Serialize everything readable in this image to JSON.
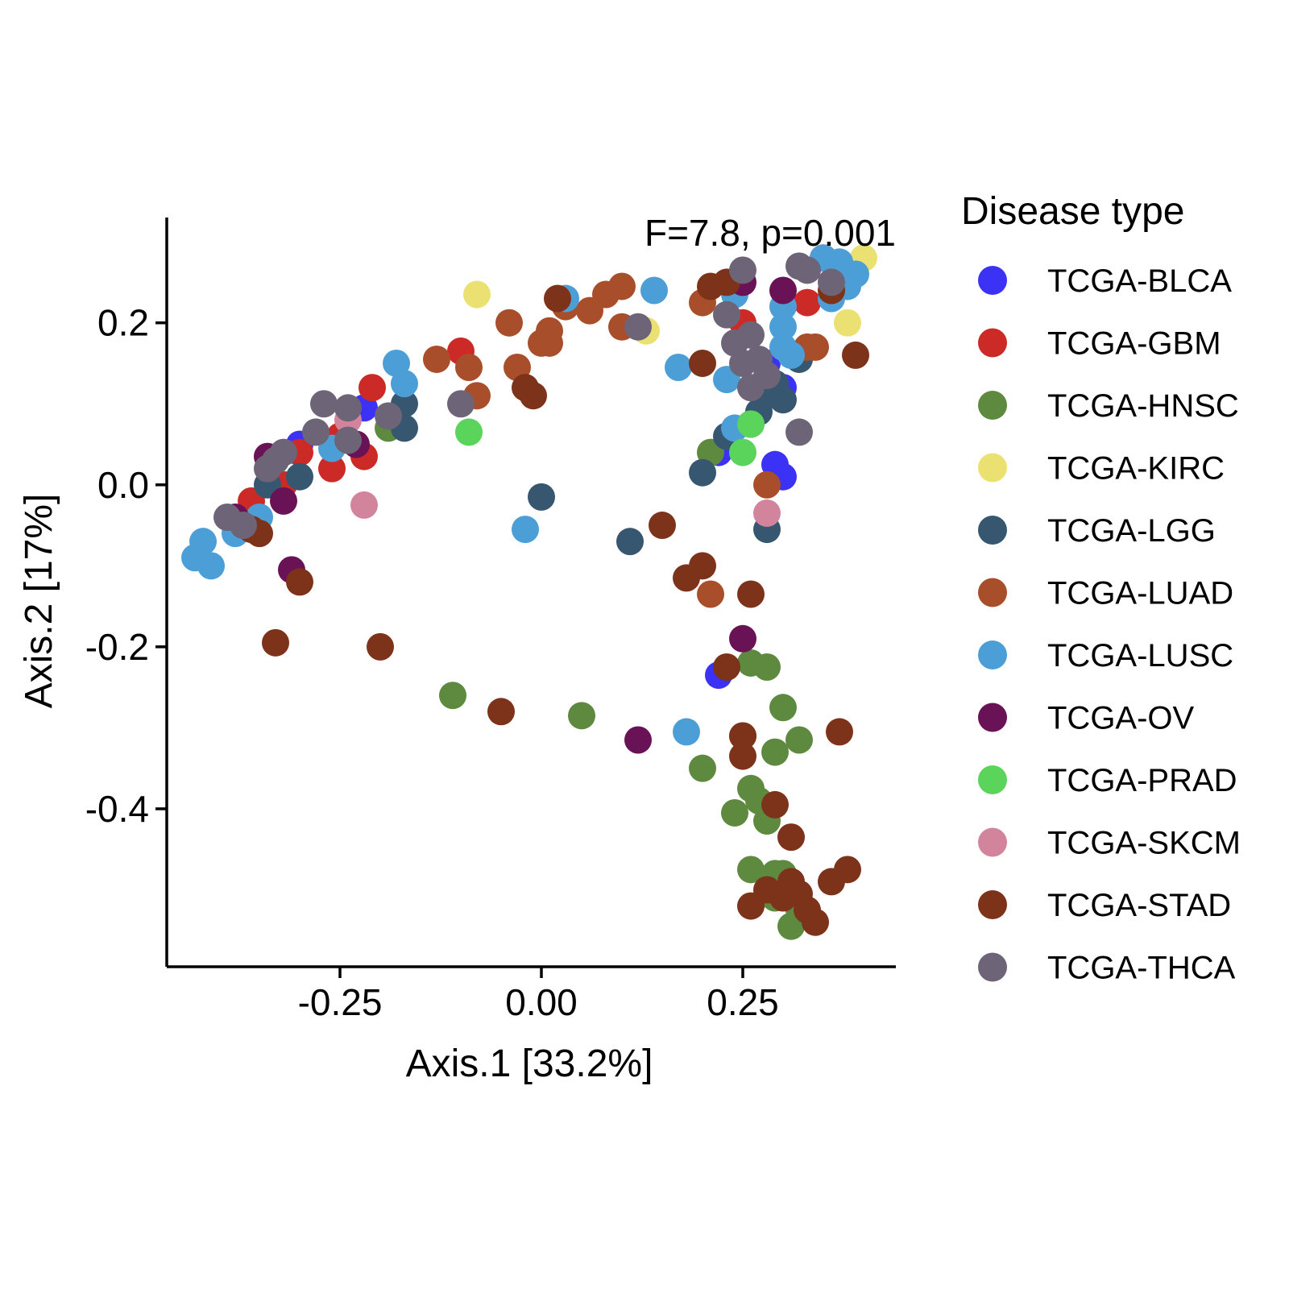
{
  "chart_data": {
    "type": "scatter",
    "annotation": "F=7.8, p=0.001",
    "xlabel": "Axis.1   [33.2%]",
    "ylabel": "Axis.2   [17%]",
    "xlim": [
      -0.465,
      0.44
    ],
    "ylim": [
      -0.595,
      0.33
    ],
    "xticks": [
      {
        "value": -0.25,
        "label": "-0.25"
      },
      {
        "value": 0.0,
        "label": "0.00"
      },
      {
        "value": 0.25,
        "label": "0.25"
      }
    ],
    "yticks": [
      {
        "value": 0.2,
        "label": "0.2"
      },
      {
        "value": 0.0,
        "label": "0.0"
      },
      {
        "value": -0.2,
        "label": "-0.2"
      },
      {
        "value": -0.4,
        "label": "-0.4"
      }
    ],
    "grid": false,
    "legend": {
      "title": "Disease type",
      "position": "right"
    },
    "series": [
      {
        "name": "TCGA-BLCA",
        "color": "#3C32F5",
        "x": [
          -0.3,
          -0.22,
          0.28,
          0.29,
          0.3,
          0.22,
          0.22,
          0.3
        ],
        "y": [
          0.05,
          0.095,
          0.15,
          0.025,
          0.01,
          -0.235,
          0.04,
          0.12
        ]
      },
      {
        "name": "TCGA-GBM",
        "color": "#CC2A27",
        "x": [
          -0.21,
          -0.25,
          -0.3,
          -0.32,
          -0.36,
          -0.26,
          -0.22,
          -0.1,
          0.25,
          0.33,
          0.35
        ],
        "y": [
          0.12,
          0.06,
          0.04,
          0.0,
          -0.02,
          0.02,
          0.035,
          0.165,
          0.2,
          0.225,
          0.28
        ]
      },
      {
        "name": "TCGA-HNSC",
        "color": "#5E8A40",
        "x": [
          -0.19,
          -0.11,
          0.05,
          0.26,
          0.28,
          0.3,
          0.32,
          0.2,
          0.29,
          0.26,
          0.27,
          0.24,
          0.28,
          0.26,
          0.29,
          0.3,
          0.28,
          0.29,
          0.31,
          0.32,
          0.31,
          0.21
        ],
        "y": [
          0.07,
          -0.26,
          -0.285,
          -0.22,
          -0.225,
          -0.275,
          -0.315,
          -0.35,
          -0.33,
          -0.375,
          -0.39,
          -0.405,
          -0.415,
          -0.475,
          -0.48,
          -0.48,
          -0.505,
          -0.51,
          -0.5,
          -0.525,
          -0.545,
          0.04
        ]
      },
      {
        "name": "TCGA-KIRC",
        "color": "#EBE172",
        "x": [
          -0.08,
          0.13,
          0.4,
          0.38
        ],
        "y": [
          0.235,
          0.19,
          0.28,
          0.2
        ]
      },
      {
        "name": "TCGA-LGG",
        "color": "#36576F",
        "x": [
          0.0,
          -0.17,
          -0.17,
          -0.3,
          -0.34,
          0.11,
          0.2,
          0.28,
          0.23,
          0.27,
          0.26,
          0.29,
          0.3,
          0.32,
          0.28
        ],
        "y": [
          -0.015,
          0.1,
          0.07,
          0.01,
          0.0,
          -0.07,
          0.015,
          -0.055,
          0.06,
          0.09,
          0.075,
          0.125,
          0.105,
          0.155,
          0.11
        ]
      },
      {
        "name": "TCGA-LUAD",
        "color": "#A94E2B",
        "x": [
          -0.13,
          -0.09,
          -0.08,
          -0.04,
          -0.03,
          0.0,
          0.01,
          0.03,
          0.06,
          0.08,
          0.1,
          0.2,
          0.33,
          0.34,
          0.28,
          0.21,
          0.1,
          0.01
        ],
        "y": [
          0.155,
          0.145,
          0.11,
          0.2,
          0.145,
          0.175,
          0.19,
          0.22,
          0.215,
          0.235,
          0.245,
          0.225,
          0.17,
          0.17,
          0.0,
          -0.135,
          0.195,
          0.175
        ]
      },
      {
        "name": "TCGA-LUSC",
        "color": "#4C9ED7",
        "x": [
          -0.43,
          -0.41,
          -0.42,
          -0.38,
          -0.35,
          -0.26,
          -0.18,
          -0.17,
          -0.02,
          0.03,
          0.14,
          0.17,
          0.18,
          0.24,
          0.23,
          0.24,
          0.3,
          0.3,
          0.35,
          0.37,
          0.38,
          0.39,
          0.36,
          0.38,
          0.31,
          0.3
        ],
        "y": [
          -0.09,
          -0.1,
          -0.07,
          -0.06,
          -0.04,
          0.045,
          0.15,
          0.125,
          -0.055,
          0.23,
          0.24,
          0.145,
          -0.305,
          0.07,
          0.13,
          0.235,
          0.22,
          0.195,
          0.28,
          0.275,
          0.25,
          0.26,
          0.23,
          0.245,
          0.16,
          0.17
        ]
      },
      {
        "name": "TCGA-OV",
        "color": "#6A1256",
        "x": [
          -0.31,
          -0.34,
          -0.32,
          -0.23,
          0.12,
          0.25,
          0.3,
          0.25,
          -0.38
        ],
        "y": [
          -0.105,
          0.035,
          -0.02,
          0.05,
          -0.315,
          -0.19,
          0.24,
          0.25,
          -0.04
        ]
      },
      {
        "name": "TCGA-PRAD",
        "color": "#5BD45B",
        "x": [
          -0.09,
          0.25,
          0.26
        ],
        "y": [
          0.065,
          0.04,
          0.075
        ]
      },
      {
        "name": "TCGA-SKCM",
        "color": "#D3849D",
        "x": [
          -0.22,
          -0.24,
          0.28
        ],
        "y": [
          -0.025,
          0.08,
          -0.035
        ]
      },
      {
        "name": "TCGA-STAD",
        "color": "#7D321A",
        "x": [
          -0.33,
          -0.2,
          -0.3,
          -0.05,
          -0.35,
          -0.36,
          0.02,
          -0.02,
          -0.01,
          0.15,
          0.18,
          0.2,
          0.25,
          0.25,
          0.26,
          0.29,
          0.31,
          0.31,
          0.32,
          0.33,
          0.34,
          0.36,
          0.38,
          0.28,
          0.3,
          0.23,
          0.2,
          0.26,
          0.21,
          0.39,
          0.23,
          0.25,
          0.36,
          0.37
        ],
        "y": [
          -0.195,
          -0.2,
          -0.12,
          -0.28,
          -0.06,
          -0.055,
          0.23,
          0.12,
          0.11,
          -0.05,
          -0.115,
          -0.1,
          -0.31,
          -0.335,
          -0.135,
          -0.395,
          -0.435,
          -0.49,
          -0.505,
          -0.525,
          -0.54,
          -0.49,
          -0.475,
          -0.5,
          -0.51,
          0.25,
          0.15,
          -0.52,
          0.245,
          0.16,
          -0.225,
          -0.31,
          0.24,
          -0.305
        ]
      },
      {
        "name": "TCGA-THCA",
        "color": "#6E6477",
        "x": [
          -0.27,
          -0.24,
          -0.19,
          -0.1,
          -0.39,
          -0.33,
          -0.28,
          -0.24,
          -0.34,
          -0.37,
          -0.32,
          0.25,
          0.23,
          0.24,
          0.26,
          0.27,
          0.25,
          0.26,
          0.32,
          0.33,
          0.36,
          0.12,
          0.32,
          0.28
        ],
        "y": [
          0.1,
          0.095,
          0.085,
          0.1,
          -0.04,
          0.03,
          0.065,
          0.055,
          0.02,
          -0.05,
          0.04,
          0.265,
          0.21,
          0.175,
          0.185,
          0.155,
          0.15,
          0.12,
          0.065,
          0.265,
          0.25,
          0.195,
          0.27,
          0.135
        ]
      }
    ]
  }
}
